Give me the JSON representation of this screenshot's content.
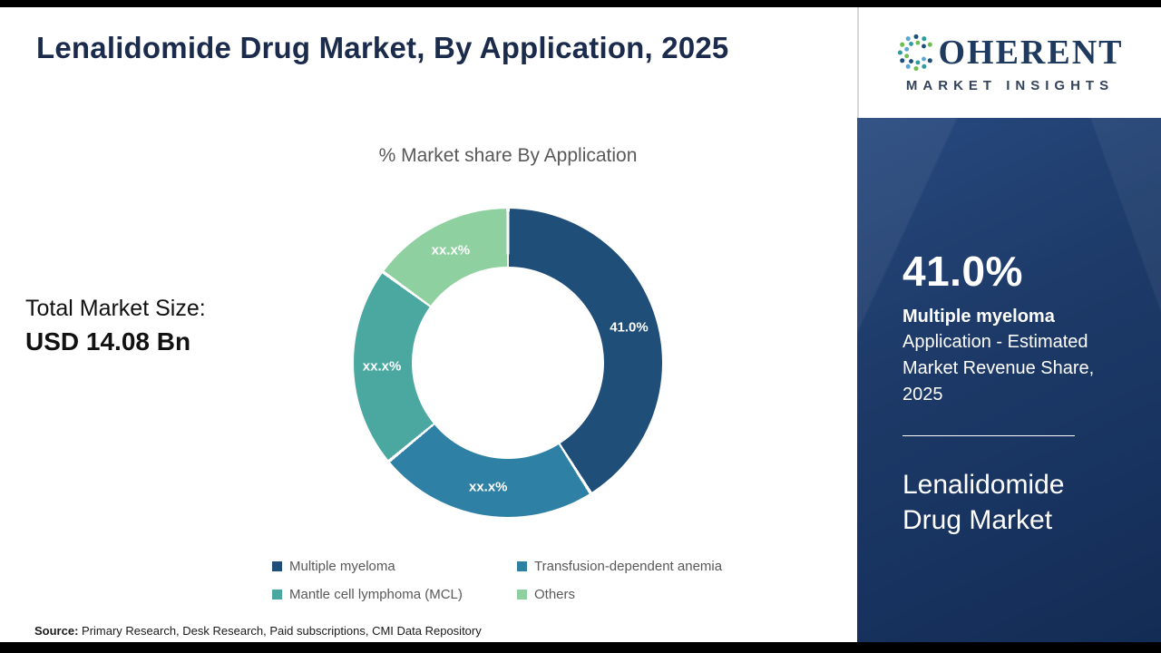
{
  "header": {
    "title": "Lenalidomide Drug Market, By Application, 2025"
  },
  "logo": {
    "brand_initial": "C",
    "brand_rest": "OHERENT",
    "tagline": "MARKET INSIGHTS",
    "icon": "dot-matrix-c-icon",
    "brand_color": "#1e3a5f"
  },
  "chart_data": {
    "type": "donut",
    "title": "% Market share By Application",
    "legend_position": "bottom",
    "segments": [
      {
        "label": "Multiple myeloma",
        "display": "41.0%",
        "value": 41.0,
        "color": "#1f4e79"
      },
      {
        "label": "Transfusion-dependent anemia",
        "display": "xx.x%",
        "value": 23.0,
        "value_estimated": true,
        "color": "#2e80a5"
      },
      {
        "label": "Mantle cell lymphoma (MCL)",
        "display": "xx.x%",
        "value": 21.0,
        "value_estimated": true,
        "color": "#4aa8a0"
      },
      {
        "label": "Others",
        "display": "xx.x%",
        "value": 15.0,
        "value_estimated": true,
        "color": "#8fd0a0"
      }
    ]
  },
  "total_market": {
    "label": "Total Market Size:",
    "value": "USD 14.08 Bn"
  },
  "side_panel": {
    "stat": "41.0%",
    "stat_label": "Multiple myeloma",
    "description": "Application - Estimated Market Revenue Share, 2025",
    "market_name": "Lenalidomide Drug Market"
  },
  "footer": {
    "source_label": "Source:",
    "source_text": "Primary Research, Desk Research, Paid subscriptions, CMI Data Repository"
  }
}
